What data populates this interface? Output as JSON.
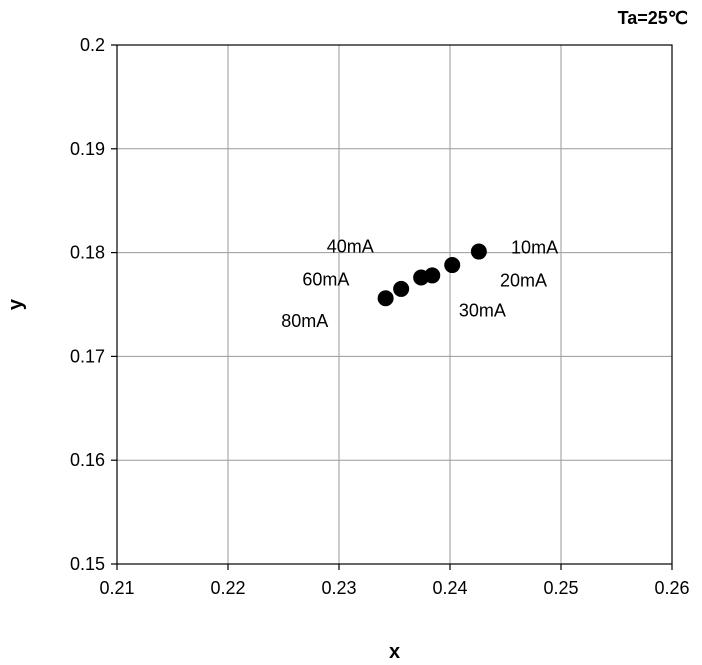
{
  "chart_data": {
    "type": "scatter",
    "title": "",
    "condition": "Ta=25℃",
    "xlabel": "x",
    "ylabel": "y",
    "xlim": [
      0.21,
      0.26
    ],
    "ylim": [
      0.15,
      0.2
    ],
    "x_ticks": [
      0.21,
      0.22,
      0.23,
      0.24,
      0.25,
      0.26
    ],
    "x_tick_labels": [
      "0.21",
      "0.22",
      "0.23",
      "0.24",
      "0.25",
      "0.26"
    ],
    "y_ticks": [
      0.15,
      0.16,
      0.17,
      0.18,
      0.19,
      0.2
    ],
    "y_tick_labels": [
      "0.15",
      "0.16",
      "0.17",
      "0.18",
      "0.19",
      "0.2"
    ],
    "grid": true,
    "marker_color": "#000000",
    "points": [
      {
        "x": 0.2426,
        "y": 0.1801
      },
      {
        "x": 0.2402,
        "y": 0.1788
      },
      {
        "x": 0.2384,
        "y": 0.1778
      },
      {
        "x": 0.2374,
        "y": 0.1776
      },
      {
        "x": 0.2356,
        "y": 0.1765
      },
      {
        "x": 0.2342,
        "y": 0.1756
      }
    ],
    "annotations": [
      {
        "text": "10mA",
        "x": 0.2455,
        "y": 0.1805
      },
      {
        "text": "20mA",
        "x": 0.2445,
        "y": 0.1773
      },
      {
        "text": "30mA",
        "x": 0.2408,
        "y": 0.1744
      },
      {
        "text": "40mA",
        "x": 0.2289,
        "y": 0.1806
      },
      {
        "text": "60mA",
        "x": 0.2267,
        "y": 0.1774
      },
      {
        "text": "80mA",
        "x": 0.2248,
        "y": 0.1734
      }
    ]
  }
}
